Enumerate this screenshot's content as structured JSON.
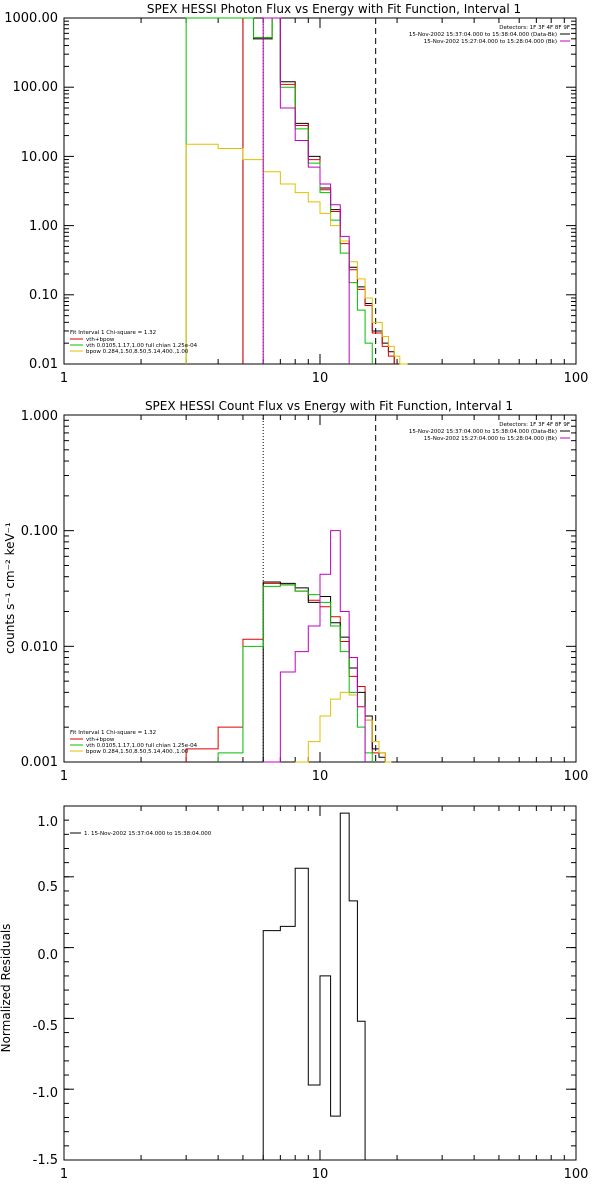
{
  "colors": {
    "total": "#000000",
    "model": "#e00000",
    "vth": "#00c000",
    "bpow": "#e0c000",
    "background": "#c000c0"
  },
  "chart_data": [
    {
      "type": "line",
      "title": "SPEX HESSI Photon Flux vs Energy with Fit Function, Interval 1",
      "xscale": "log",
      "yscale": "log",
      "xlim": [
        1,
        100
      ],
      "ylim": [
        0.01,
        1000
      ],
      "xticks": [
        "1",
        "10",
        "100"
      ],
      "yticks": [
        "0.01",
        "0.10",
        "1.00",
        "10.00",
        "100.00",
        "1000.00"
      ],
      "ytick_values": [
        0.01,
        0.1,
        1,
        10,
        100,
        1000
      ],
      "vlines": [
        {
          "x": 6,
          "style": "dotted"
        },
        {
          "x": 16.5,
          "style": "dashed"
        }
      ],
      "legend_right": [
        "Detectors: 1F 3F 4F 8F 9F",
        "15-Nov-2002 15:37:04.000 to 15:38:04.000 (Data-Bk)",
        "15-Nov-2002 15:27:04.000 to 15:28:04.000 (Bk)"
      ],
      "legend_left": [
        "Fit Interval 1    Chi-square = 1.32",
        "vth+bpow",
        "vth 0.0105,1.17,1.00  full chian 1.25e-04",
        "bpow 0.284,1.50,8.50,5.14,400.,1.00"
      ],
      "edges": [
        3,
        3.5,
        4,
        4.5,
        5,
        5.5,
        6,
        6.5,
        7,
        7.5,
        8,
        8.5,
        9,
        9.5,
        10,
        10.5,
        11,
        11.5,
        12,
        12.5,
        13,
        13.5,
        14,
        14.5,
        15,
        15.5,
        16,
        16.5,
        17.5,
        18.5,
        19.5,
        20.5,
        22
      ],
      "series": [
        {
          "color_key": "total",
          "values": [
            null,
            null,
            null,
            null,
            1000,
            500,
            500,
            1000,
            120,
            120,
            30,
            30,
            10,
            10,
            3.5,
            3.5,
            1.7,
            1.7,
            0.6,
            0.6,
            0.25,
            0.25,
            0.13,
            0.13,
            0.075,
            0.075,
            0.03,
            0.03,
            0.02,
            0.015,
            null,
            null
          ]
        },
        {
          "color_key": "model",
          "values": [
            null,
            null,
            null,
            null,
            1000,
            520,
            520,
            1000,
            110,
            110,
            28,
            28,
            9,
            9,
            3.3,
            3.3,
            1.6,
            1.6,
            0.55,
            0.55,
            0.23,
            0.23,
            0.12,
            0.12,
            0.07,
            0.07,
            0.028,
            0.028,
            0.018,
            0.013,
            null,
            null
          ]
        },
        {
          "color_key": "vth",
          "values": [
            1000,
            1000,
            1000,
            1000,
            1000,
            520,
            520,
            1000,
            100,
            100,
            25,
            25,
            8,
            8,
            3,
            3,
            1.2,
            1.2,
            0.4,
            0.4,
            0.15,
            0.15,
            0.06,
            0.06,
            0.02,
            0.02,
            null,
            null,
            null,
            null,
            null,
            null
          ]
        },
        {
          "color_key": "bpow",
          "values": [
            15,
            15,
            13,
            13,
            9,
            9,
            6,
            6,
            4,
            4,
            3,
            3,
            2.2,
            2.2,
            1.5,
            1.5,
            1,
            1,
            0.6,
            0.6,
            0.3,
            0.3,
            0.17,
            0.17,
            0.09,
            0.09,
            0.04,
            0.04,
            0.025,
            0.018,
            0.013,
            0.01
          ]
        },
        {
          "color_key": "background",
          "values": [
            null,
            null,
            null,
            null,
            null,
            null,
            1000,
            1000,
            50,
            50,
            17,
            17,
            7,
            7,
            4,
            4,
            2,
            2,
            0.7,
            0.7,
            null,
            null,
            null,
            null,
            null,
            null,
            null,
            null,
            null,
            null,
            null,
            null
          ]
        }
      ]
    },
    {
      "type": "line",
      "title": "SPEX HESSI Count Flux vs Energy with Fit Function, Interval 1",
      "xscale": "log",
      "yscale": "log",
      "xlim": [
        1,
        100
      ],
      "ylim": [
        0.001,
        1
      ],
      "xticks": [
        "1",
        "10",
        "100"
      ],
      "yticks": [
        "0.001",
        "0.010",
        "0.100",
        "1.000"
      ],
      "ytick_values": [
        0.001,
        0.01,
        0.1,
        1
      ],
      "ylabel": "counts s⁻¹ cm⁻² keV⁻¹",
      "vlines": [
        {
          "x": 6,
          "style": "dotted"
        },
        {
          "x": 16.5,
          "style": "dashed"
        }
      ],
      "legend_right": [
        "Detectors: 1F 3F 4F 8F 9F",
        "15-Nov-2002 15:37:04.000 to 15:38:04.000 (Data-Bk)",
        "15-Nov-2002 15:27:04.000 to 15:28:04.000 (Bk)"
      ],
      "legend_left": [
        "Fit Interval 1    Chi-square = 1.32",
        "vth+bpow",
        "vth 0.0105,1.17,1.00  full chian 1.25e-04",
        "bpow 0.284,1.50,8.50,5.14,400.,1.00"
      ],
      "edges": [
        3,
        4,
        5,
        6,
        7,
        8,
        9,
        10,
        11,
        12,
        13,
        14,
        15,
        16,
        17,
        18,
        19,
        20,
        21,
        22
      ],
      "series": [
        {
          "color_key": "model",
          "values": [
            0.0013,
            0.002,
            0.0115,
            0.035,
            0.034,
            0.03,
            0.025,
            0.022,
            0.018,
            0.011,
            0.0055,
            0.0045,
            0.0023,
            0.0012,
            0.0012,
            0.001,
            null,
            null,
            null
          ]
        },
        {
          "color_key": "total",
          "values": [
            null,
            null,
            null,
            0.036,
            0.035,
            0.032,
            0.024,
            0.027,
            0.016,
            0.012,
            0.0065,
            0.004,
            0.0025,
            0.0013,
            0.0011,
            null,
            null,
            null,
            null
          ]
        },
        {
          "color_key": "vth",
          "values": [
            null,
            0.0012,
            0.01,
            0.033,
            0.034,
            0.03,
            0.028,
            0.024,
            0.015,
            0.009,
            0.004,
            0.002,
            0.0012,
            null,
            null,
            null,
            null,
            null,
            null
          ]
        },
        {
          "color_key": "bpow",
          "values": [
            null,
            null,
            null,
            null,
            null,
            0.001,
            0.0015,
            0.0025,
            0.0035,
            0.004,
            0.0038,
            0.003,
            0.0023,
            0.0015,
            0.0012,
            0.001,
            null,
            null,
            null
          ]
        },
        {
          "color_key": "background",
          "values": [
            null,
            null,
            null,
            0.001,
            0.006,
            0.009,
            0.015,
            0.042,
            0.1,
            0.02,
            0.008,
            0.003,
            null,
            null,
            null,
            null,
            null,
            null,
            null
          ]
        }
      ]
    },
    {
      "type": "line",
      "xscale": "log",
      "yscale": "linear",
      "xlim": [
        1,
        100
      ],
      "ylim": [
        -1.5,
        1.0
      ],
      "xticks": [
        "1",
        "10",
        "100"
      ],
      "yticks": [
        "-1.5",
        "-1.0",
        "-0.5",
        "0.0",
        "0.5",
        "1.0"
      ],
      "ytick_values": [
        -1.5,
        -1.0,
        -0.5,
        0.0,
        0.5,
        1.0
      ],
      "ylabel": "Normalized Residuals",
      "legend_left": [
        "1. 15-Nov-2002 15:37:04.000 to 15:38:04.000"
      ],
      "edges": [
        6,
        7,
        8,
        9,
        10,
        11,
        12,
        13,
        14,
        15,
        16.5
      ],
      "series": [
        {
          "color_key": "total",
          "values": [
            0.12,
            0.15,
            0.56,
            -0.97,
            -0.2,
            -1.19,
            0.95,
            0.33,
            -0.52,
            -1.6
          ]
        }
      ]
    }
  ]
}
